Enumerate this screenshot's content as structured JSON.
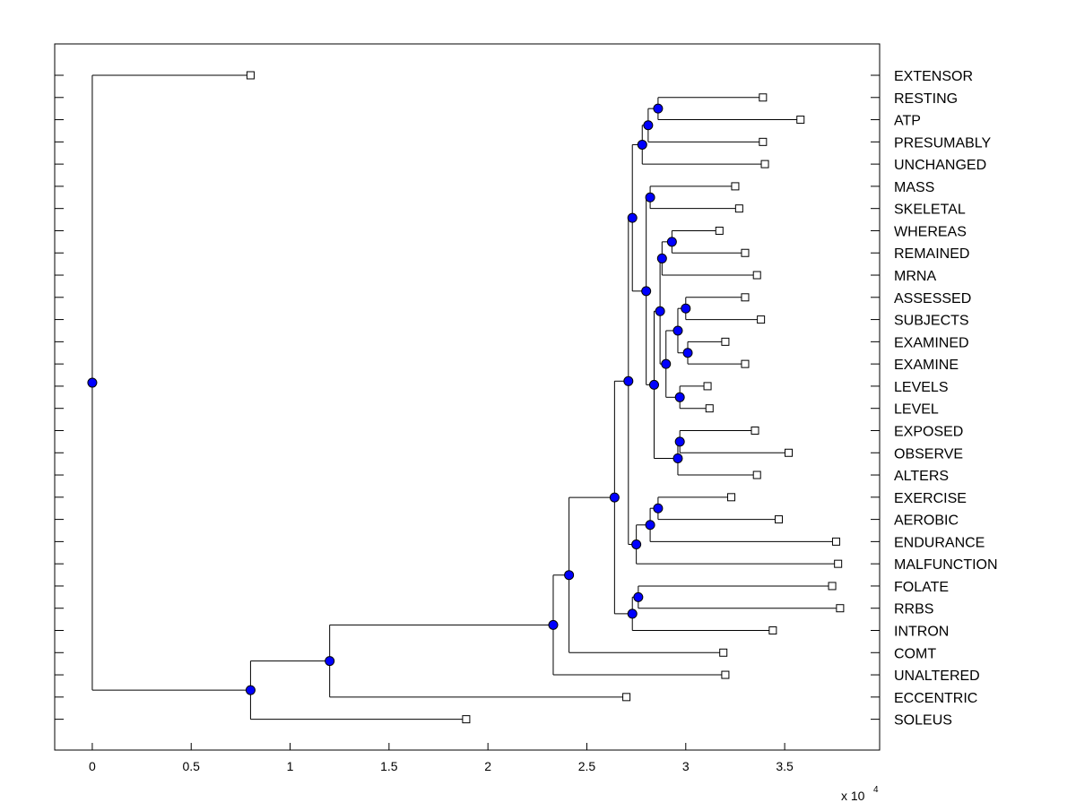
{
  "chart_data": {
    "type": "dendrogram",
    "orientation": "horizontal",
    "title": "",
    "xlabel": "",
    "x_scale_label": "x 10",
    "x_scale_exponent": "4",
    "xlim": [
      -0.19,
      3.98
    ],
    "xticks": [
      0,
      0.5,
      1,
      1.5,
      2,
      2.5,
      3,
      3.5
    ],
    "xtick_labels": [
      "0",
      "0.5",
      "1",
      "1.5",
      "2",
      "2.5",
      "3",
      "3.5"
    ],
    "leaf_labels": [
      "EXTENSOR",
      "RESTING",
      "ATP",
      "PRESUMABLY",
      "UNCHANGED",
      "MASS",
      "SKELETAL",
      "WHEREAS",
      "REMAINED",
      "MRNA",
      "ASSESSED",
      "SUBJECTS",
      "EXAMINED",
      "EXAMINE",
      "LEVELS",
      "LEVEL",
      "EXPOSED",
      "OBSERVE",
      "ALTERS",
      "EXERCISE",
      "AEROBIC",
      "ENDURANCE",
      "MALFUNCTION",
      "FOLATE",
      "RRBS",
      "INTRON",
      "COMT",
      "UNALTERED",
      "ECCENTRIC",
      "SOLEUS"
    ],
    "leaf_values": [
      0.8,
      3.39,
      3.58,
      3.39,
      3.4,
      3.25,
      3.27,
      3.17,
      3.3,
      3.36,
      3.3,
      3.38,
      3.2,
      3.3,
      3.11,
      3.12,
      3.35,
      3.52,
      3.36,
      3.23,
      3.47,
      3.76,
      3.77,
      3.74,
      3.78,
      3.44,
      3.19,
      3.2,
      2.7,
      1.89
    ],
    "node_color": "#0000ff",
    "line_color": "#000000",
    "nodes": [
      {
        "id": "n1",
        "value": 2.86,
        "children": [
          "L1",
          "L2"
        ]
      },
      {
        "id": "n2",
        "value": 2.81,
        "children": [
          "n1",
          "L3"
        ]
      },
      {
        "id": "n3",
        "value": 2.78,
        "children": [
          "n2",
          "L4"
        ]
      },
      {
        "id": "n4",
        "value": 2.82,
        "children": [
          "L5",
          "L6"
        ]
      },
      {
        "id": "n5",
        "value": 2.93,
        "children": [
          "L7",
          "L8"
        ]
      },
      {
        "id": "n6",
        "value": 2.88,
        "children": [
          "n5",
          "L9"
        ]
      },
      {
        "id": "n7",
        "value": 3.0,
        "children": [
          "L10",
          "L11"
        ]
      },
      {
        "id": "n8",
        "value": 3.01,
        "children": [
          "L12",
          "L13"
        ]
      },
      {
        "id": "n9",
        "value": 2.96,
        "children": [
          "n7",
          "n8"
        ]
      },
      {
        "id": "n10",
        "value": 2.97,
        "children": [
          "L14",
          "L15"
        ]
      },
      {
        "id": "n11",
        "value": 2.9,
        "children": [
          "n9",
          "n10"
        ]
      },
      {
        "id": "n12",
        "value": 2.87,
        "children": [
          "n6",
          "n11"
        ]
      },
      {
        "id": "n13",
        "value": 2.97,
        "children": [
          "L16",
          "L17"
        ]
      },
      {
        "id": "n14",
        "value": 2.96,
        "children": [
          "n13",
          "L18"
        ]
      },
      {
        "id": "n15",
        "value": 2.84,
        "children": [
          "n12",
          "n14"
        ]
      },
      {
        "id": "n16",
        "value": 2.8,
        "children": [
          "n4",
          "n15"
        ]
      },
      {
        "id": "n17",
        "value": 2.73,
        "children": [
          "n3",
          "n16"
        ]
      },
      {
        "id": "n18",
        "value": 2.86,
        "children": [
          "L19",
          "L20"
        ]
      },
      {
        "id": "n19",
        "value": 2.82,
        "children": [
          "n18",
          "L21"
        ]
      },
      {
        "id": "n20",
        "value": 2.75,
        "children": [
          "n19",
          "L22"
        ]
      },
      {
        "id": "n21",
        "value": 2.71,
        "children": [
          "n17",
          "n20"
        ]
      },
      {
        "id": "n22",
        "value": 2.76,
        "children": [
          "L23",
          "L24"
        ]
      },
      {
        "id": "n23",
        "value": 2.73,
        "children": [
          "n22",
          "L25"
        ]
      },
      {
        "id": "n24",
        "value": 2.64,
        "children": [
          "n21",
          "n23"
        ]
      },
      {
        "id": "n25",
        "value": 2.41,
        "children": [
          "n24",
          "L26"
        ]
      },
      {
        "id": "n26",
        "value": 2.33,
        "children": [
          "n25",
          "L27"
        ]
      },
      {
        "id": "n27",
        "value": 1.2,
        "children": [
          "n26",
          "L28"
        ]
      },
      {
        "id": "n28",
        "value": 0.8,
        "children": [
          "n27",
          "L29"
        ]
      },
      {
        "id": "n29",
        "value": 0.0,
        "children": [
          "L0",
          "n28"
        ]
      }
    ]
  }
}
